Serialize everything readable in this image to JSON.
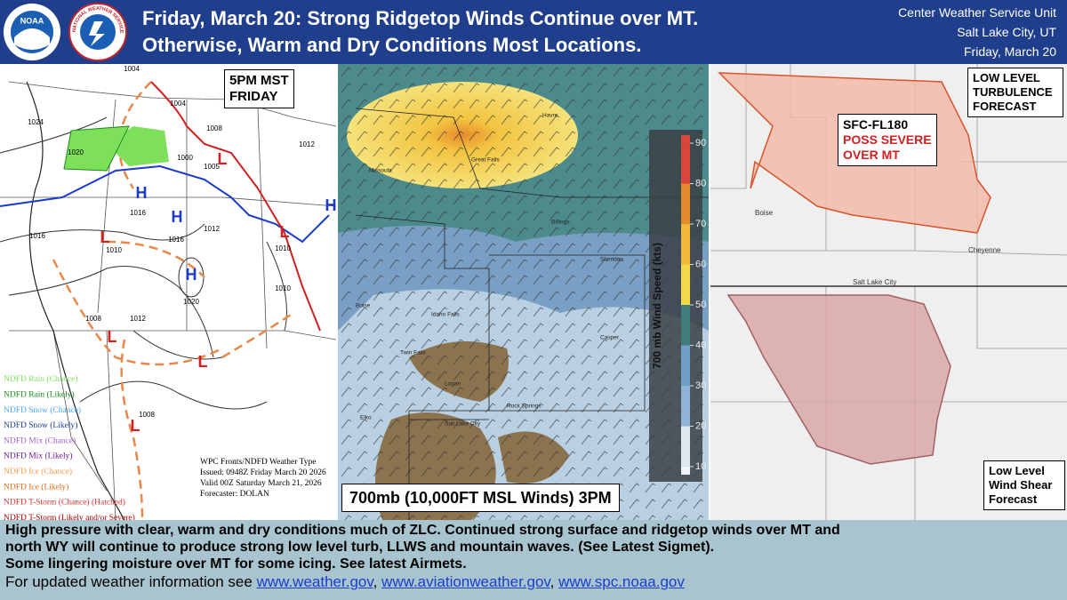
{
  "header": {
    "logo_left": "NOAA",
    "logo_right": "NATIONAL WEATHER SERVICE",
    "title_line1": "Friday, March 20: Strong Ridgetop Winds Continue over MT.",
    "title_line2": "Otherwise, Warm and Dry Conditions Most Locations.",
    "office_line1": "Center Weather Service Unit",
    "office_line2": "Salt Lake City, UT",
    "office_line3": "Friday, March 20"
  },
  "surface_map": {
    "time_line1": "5PM MST",
    "time_line2": "FRIDAY",
    "isobars": [
      "1024",
      "1020",
      "1016",
      "1016",
      "1012",
      "1010",
      "1016",
      "1008",
      "1012",
      "1020",
      "1010",
      "1010",
      "1008",
      "1004",
      "1000",
      "1005",
      "1008",
      "1012",
      "1004"
    ],
    "centers": [
      "H",
      "H",
      "H",
      "H",
      "L",
      "L",
      "L",
      "L",
      "L",
      "L"
    ],
    "legend": [
      {
        "label": "NDFD Rain (Chance)",
        "color": "#7ee05a"
      },
      {
        "label": "NDFD Rain (Likely)",
        "color": "#1a8a1a"
      },
      {
        "label": "NDFD Snow (Chance)",
        "color": "#4da6ff"
      },
      {
        "label": "NDFD Snow (Likely)",
        "color": "#1a3a9a"
      },
      {
        "label": "NDFD Mix (Chance)",
        "color": "#9a66cc"
      },
      {
        "label": "NDFD Mix (Likely)",
        "color": "#6a1a9a"
      },
      {
        "label": "NDFD Ice (Chance)",
        "color": "#ff9a4d"
      },
      {
        "label": "NDFD Ice (Likely)",
        "color": "#e06a1a"
      },
      {
        "label": "NDFD T-Storm (Chance) (Hatched)",
        "color": "#e03030"
      },
      {
        "label": "NDFD T-Storm (Likely and/or Severe)",
        "color": "#b00000"
      }
    ],
    "credits": [
      "WPC Fronts/NDFD Weather Type",
      "Issued: 0948Z Friday March 20 2026",
      "Valid 00Z Saturday March 21, 2026",
      "Forecaster: DOLAN"
    ]
  },
  "wind_map": {
    "caption": "700mb (10,000FT MSL Winds) 3PM",
    "colorbar_title": "700 mb Wind Speed (kts)",
    "colorbar_ticks": [
      10,
      20,
      30,
      40,
      50,
      60,
      70,
      80,
      90
    ],
    "colorbar_lim": [
      8,
      92
    ],
    "cities": [
      "Missoula",
      "Great Falls",
      "Havre",
      "Billings",
      "Sheridan",
      "Boise",
      "Idaho Falls",
      "Twin Falls",
      "Casper",
      "Logan",
      "Rock Springs",
      "Salt Lake City",
      "Elko"
    ]
  },
  "hazard_maps": {
    "turbulence_title_line1": "LOW LEVEL",
    "turbulence_title_line2": "TURBULENCE",
    "turbulence_title_line3": "FORECAST",
    "turbulence_level": "SFC-FL180",
    "turbulence_note_line1": "POSS SEVERE",
    "turbulence_note_line2": "OVER MT",
    "llws_title_line1": "Low Level",
    "llws_title_line2": "Wind Shear",
    "llws_title_line3": "Forecast",
    "cities": [
      "Boise",
      "Cheyenne",
      "Salt Lake City"
    ]
  },
  "footer": {
    "line1": "High pressure with clear, warm and dry conditions much of ZLC.  Continued strong surface and ridgetop winds over MT and",
    "line2": "north WY will continue to produce strong low level turb, LLWS and mountain waves. (See Latest Sigmet).",
    "line3": "Some lingering moisture over MT for some icing.  See latest Airmets.",
    "link_intro": "For updated weather information see ",
    "links": [
      "www.weather.gov",
      "www.aviationweather.gov",
      "www.spc.noaa.gov"
    ],
    "separators": [
      ",  ",
      ", "
    ]
  }
}
